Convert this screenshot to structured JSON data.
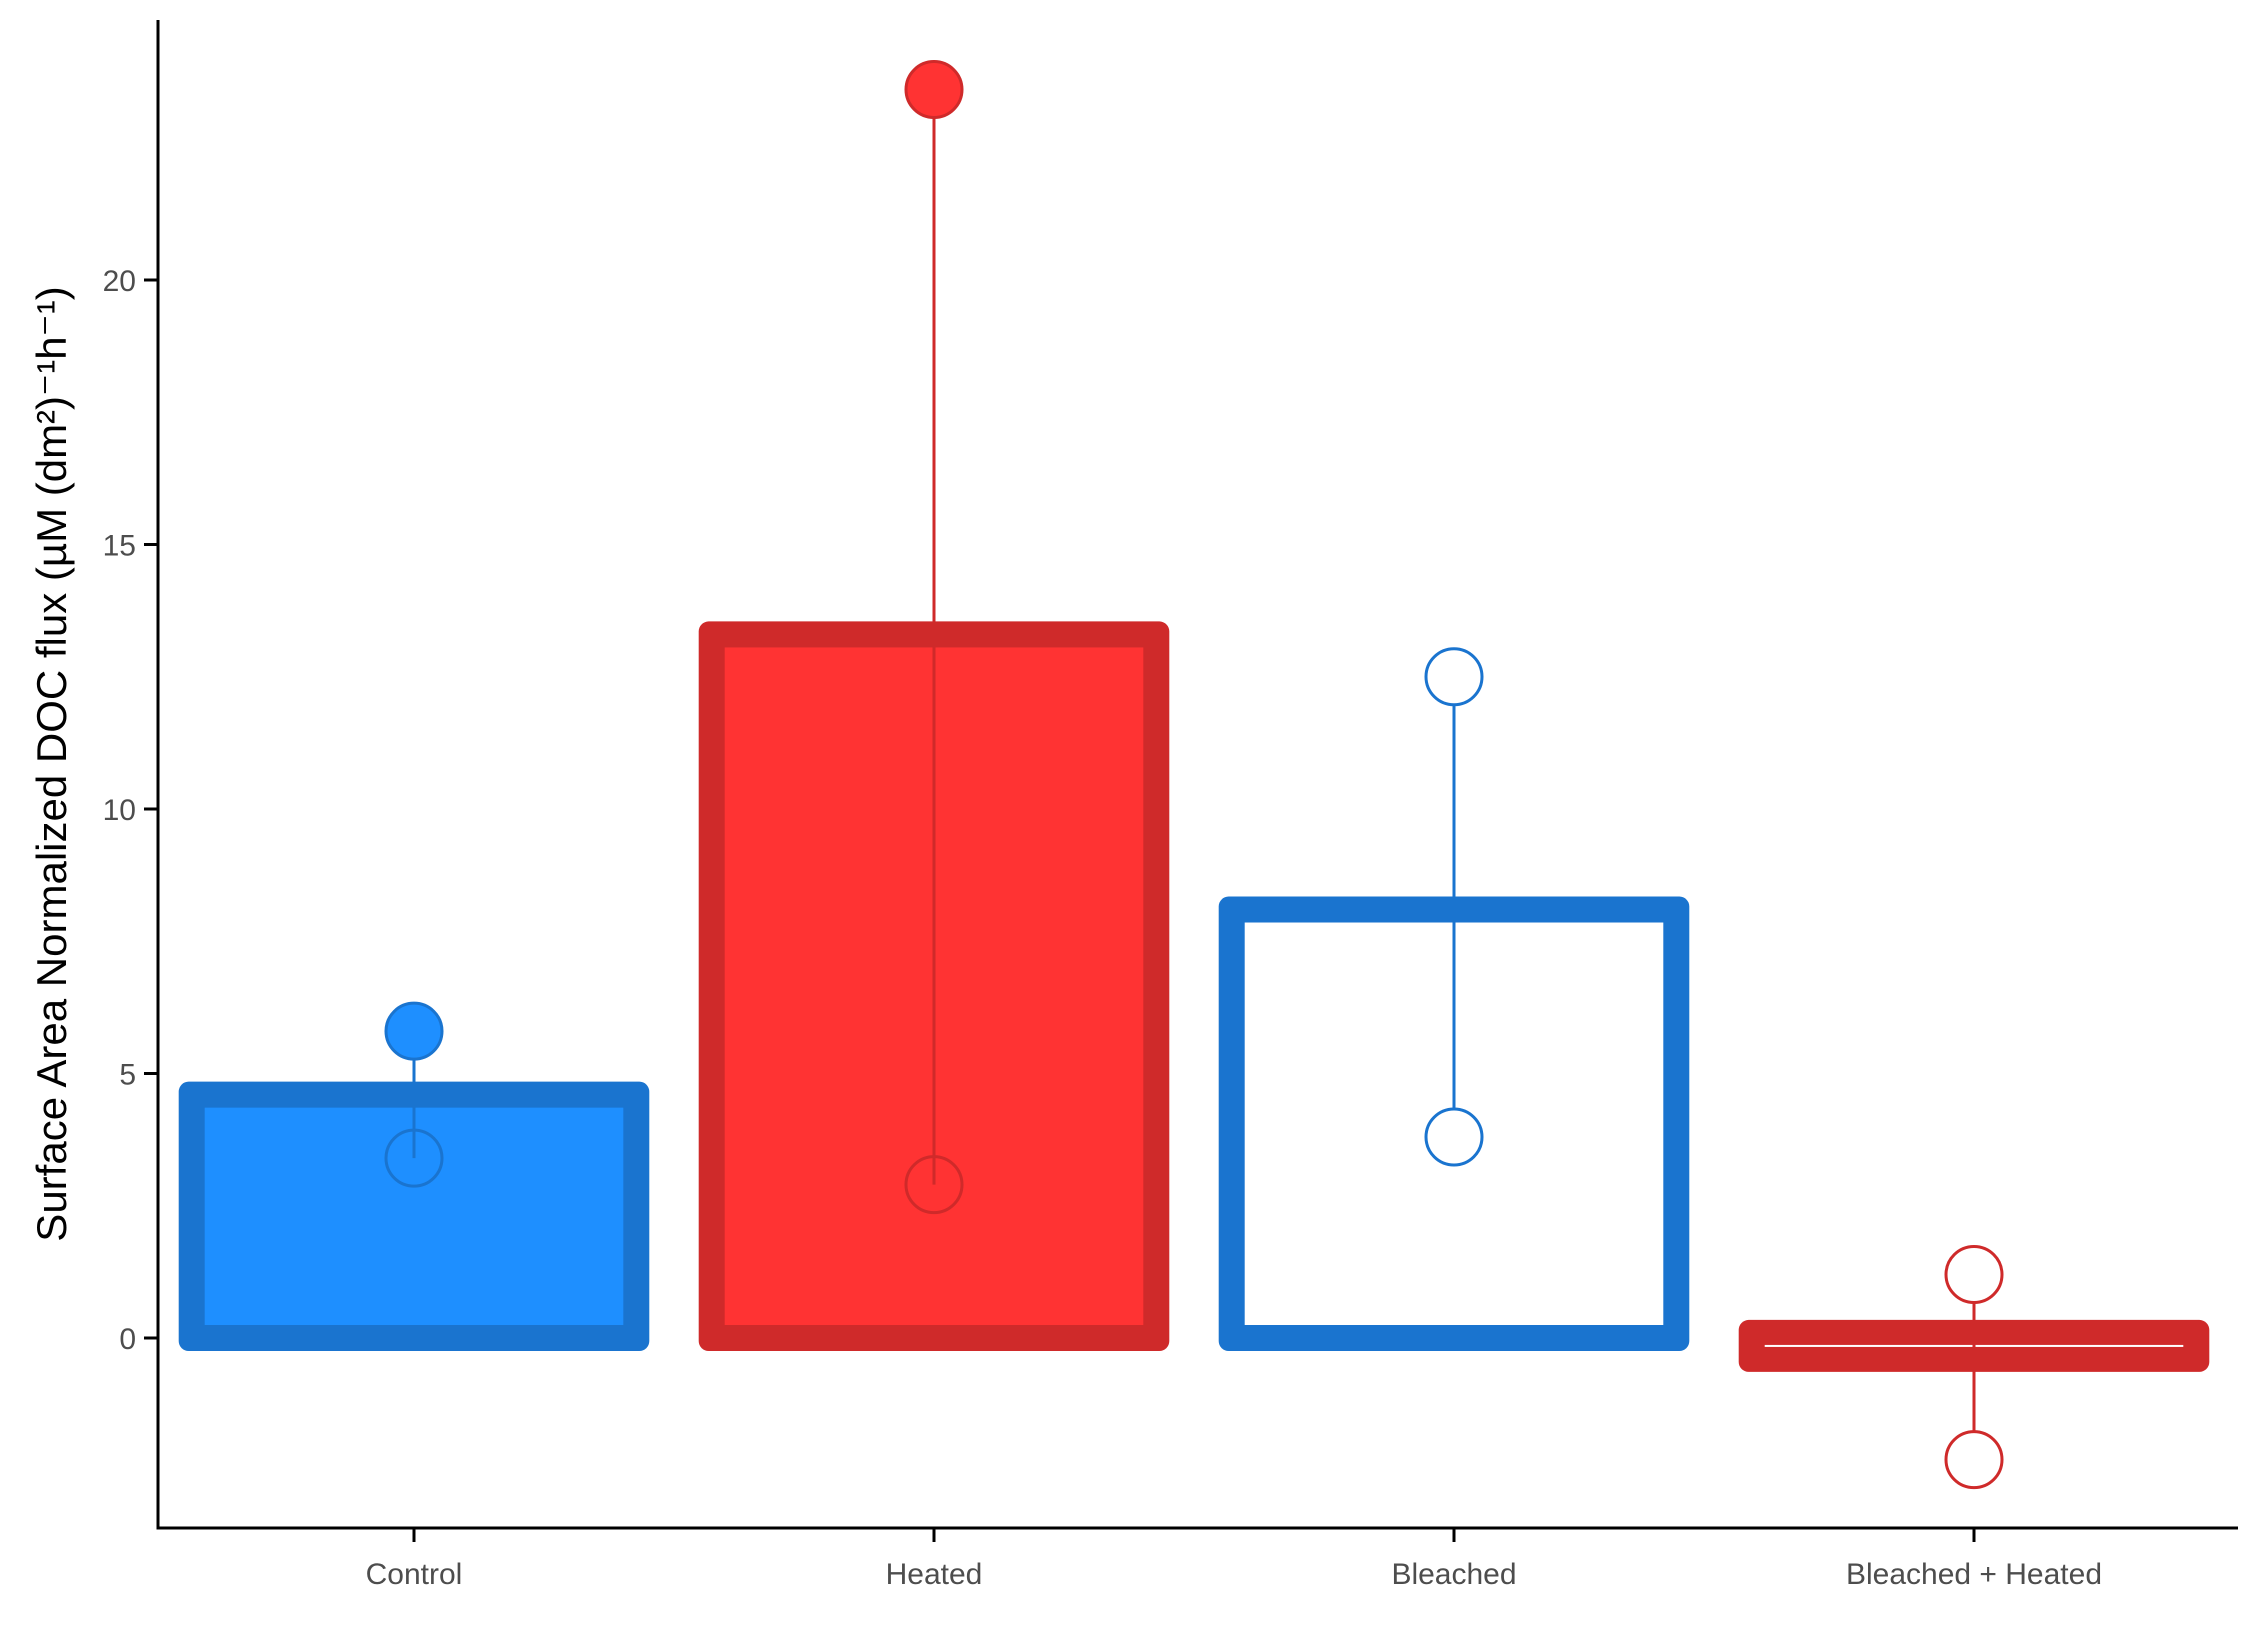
{
  "chart_data": {
    "type": "bar",
    "title": "",
    "xlabel": "",
    "ylabel": "Surface Area Normalized DOC flux (µM (dm²)⁻¹h⁻¹)",
    "ylim": [
      -3.6,
      24.9
    ],
    "yticks": [
      0,
      5,
      10,
      15,
      20
    ],
    "grid": false,
    "categories": [
      "Control",
      "Heated",
      "Bleached",
      "Bleached + Heated"
    ],
    "values": [
      4.6,
      13.3,
      8.1,
      -0.3
    ],
    "error_bars": [
      {
        "low": 3.4,
        "high": 5.8
      },
      {
        "low": 2.9,
        "high": 23.6
      },
      {
        "low": 3.8,
        "high": 12.5
      },
      {
        "low": -2.3,
        "high": 1.2
      }
    ],
    "styles": [
      {
        "fill": "#1e8fff",
        "border": "#1a74cf",
        "whisker": "#1a74cf",
        "low_marker_fill": "none",
        "high_marker_fill": "#1e8fff"
      },
      {
        "fill": "#ff3333",
        "border": "#cf2a2a",
        "whisker": "#cf2a2a",
        "low_marker_fill": "none",
        "high_marker_fill": "#ff3333"
      },
      {
        "fill": "#ffffff",
        "border": "#1a74cf",
        "whisker": "#1a74cf",
        "low_marker_fill": "#ffffff",
        "high_marker_fill": "#ffffff"
      },
      {
        "fill": "#ffffff",
        "border": "#cf2a2a",
        "whisker": "#cf2a2a",
        "low_marker_fill": "#ffffff",
        "high_marker_fill": "#ffffff"
      }
    ]
  }
}
